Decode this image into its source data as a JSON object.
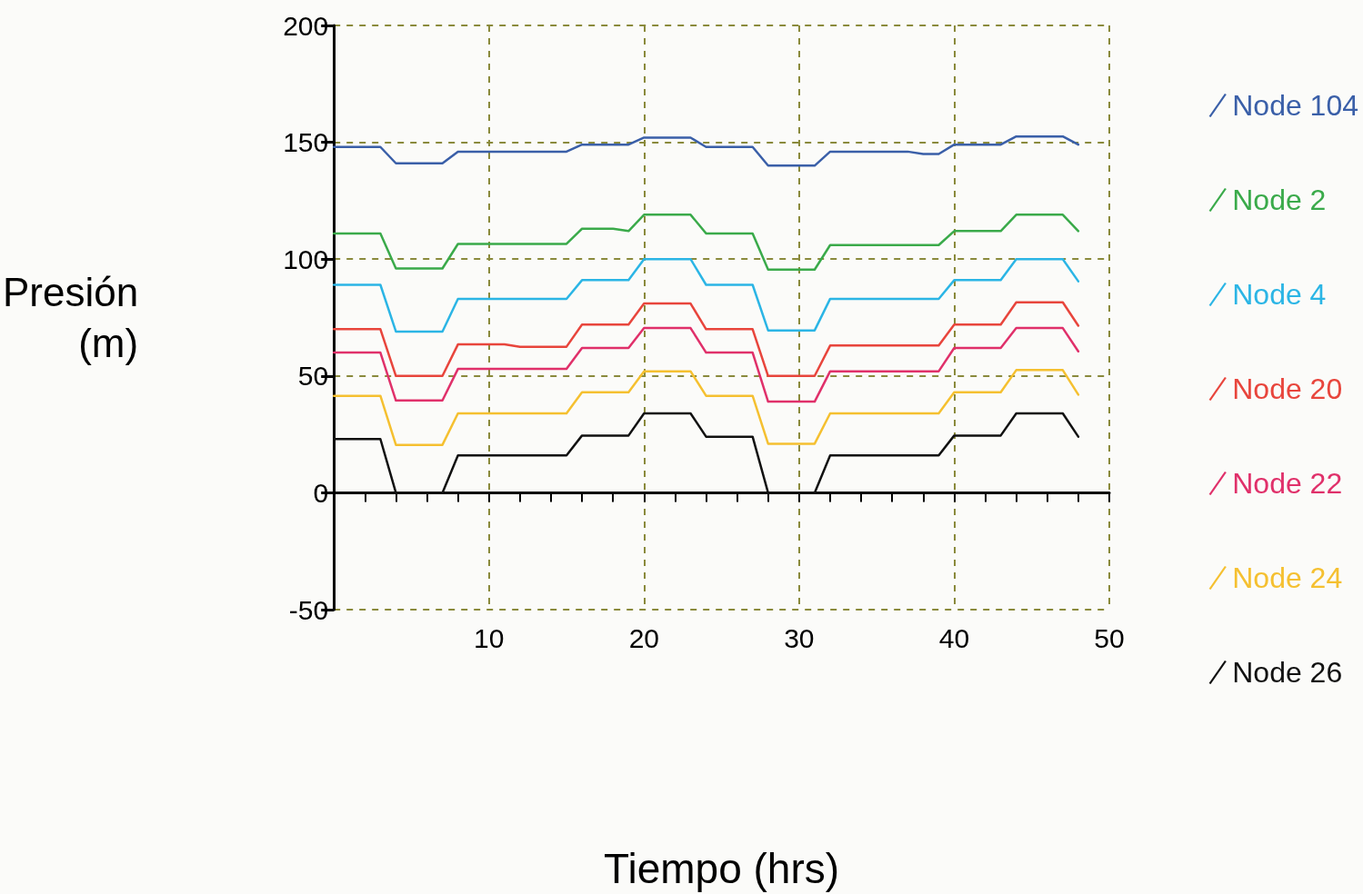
{
  "chart_data": {
    "type": "line",
    "xlabel": "Tiempo (hrs)",
    "ylabel": "Presión\n(m)",
    "x": [
      0,
      3,
      4,
      7,
      8,
      11,
      12,
      15,
      16,
      18,
      19,
      20,
      23,
      24,
      27,
      28,
      31,
      32,
      37,
      38,
      39,
      40,
      43,
      44,
      47,
      48
    ],
    "xlim": [
      0,
      50
    ],
    "xticks": [
      10,
      20,
      30,
      40,
      50
    ],
    "ylim": [
      -50,
      200
    ],
    "yticks": [
      -50,
      0,
      50,
      100,
      150,
      200
    ],
    "grid": true,
    "legend": "right",
    "marker": "none",
    "line_style": "solid",
    "series": [
      {
        "name": "Node 104",
        "color": "#3a5fa8",
        "values": [
          148,
          148,
          141,
          141,
          146,
          146,
          146,
          146,
          149,
          149,
          149,
          152,
          152,
          148,
          148,
          140,
          140,
          146,
          146,
          145,
          145,
          149,
          149,
          152.5,
          152.5,
          149
        ]
      },
      {
        "name": "Node 2",
        "color": "#3aaa4a",
        "values": [
          111,
          111,
          96,
          96,
          106.5,
          106.5,
          106.5,
          106.5,
          113,
          113,
          112,
          119,
          119,
          111,
          111,
          95.5,
          95.5,
          106,
          106,
          106,
          106,
          112,
          112,
          119,
          119,
          112
        ]
      },
      {
        "name": "Node 4",
        "color": "#2bb5e5",
        "values": [
          89,
          89,
          69,
          69,
          83,
          83,
          83,
          83,
          91,
          91,
          91,
          100,
          100,
          89,
          89,
          69.5,
          69.5,
          83,
          83,
          83,
          83,
          91,
          91,
          100,
          100,
          90.5
        ]
      },
      {
        "name": "Node 20",
        "color": "#e8453c",
        "values": [
          70,
          70,
          50,
          50,
          63.5,
          63.5,
          62.5,
          62.5,
          72,
          72,
          72,
          81,
          81,
          70,
          70,
          50,
          50,
          63,
          63,
          63,
          63,
          72,
          72,
          81.5,
          81.5,
          71.5
        ]
      },
      {
        "name": "Node 22",
        "color": "#e0306a",
        "values": [
          60,
          60,
          39.5,
          39.5,
          53,
          53,
          53,
          53,
          62,
          62,
          62,
          70.5,
          70.5,
          60,
          60,
          39,
          39,
          52,
          52,
          52,
          52,
          62,
          62,
          70.5,
          70.5,
          60.5
        ]
      },
      {
        "name": "Node 24",
        "color": "#f5c030",
        "values": [
          41.5,
          41.5,
          20.5,
          20.5,
          34,
          34,
          34,
          34,
          43,
          43,
          43,
          52,
          52,
          41.5,
          41.5,
          21,
          21,
          34,
          34,
          34,
          34,
          43,
          43,
          52.5,
          52.5,
          42
        ]
      },
      {
        "name": "Node 26",
        "color": "#111111",
        "values": [
          23,
          23,
          0,
          0,
          16,
          16,
          16,
          16,
          24.5,
          24.5,
          24.5,
          34,
          34,
          24,
          24,
          0,
          0,
          16,
          16,
          16,
          16,
          24.5,
          24.5,
          34,
          34,
          24
        ]
      }
    ]
  }
}
